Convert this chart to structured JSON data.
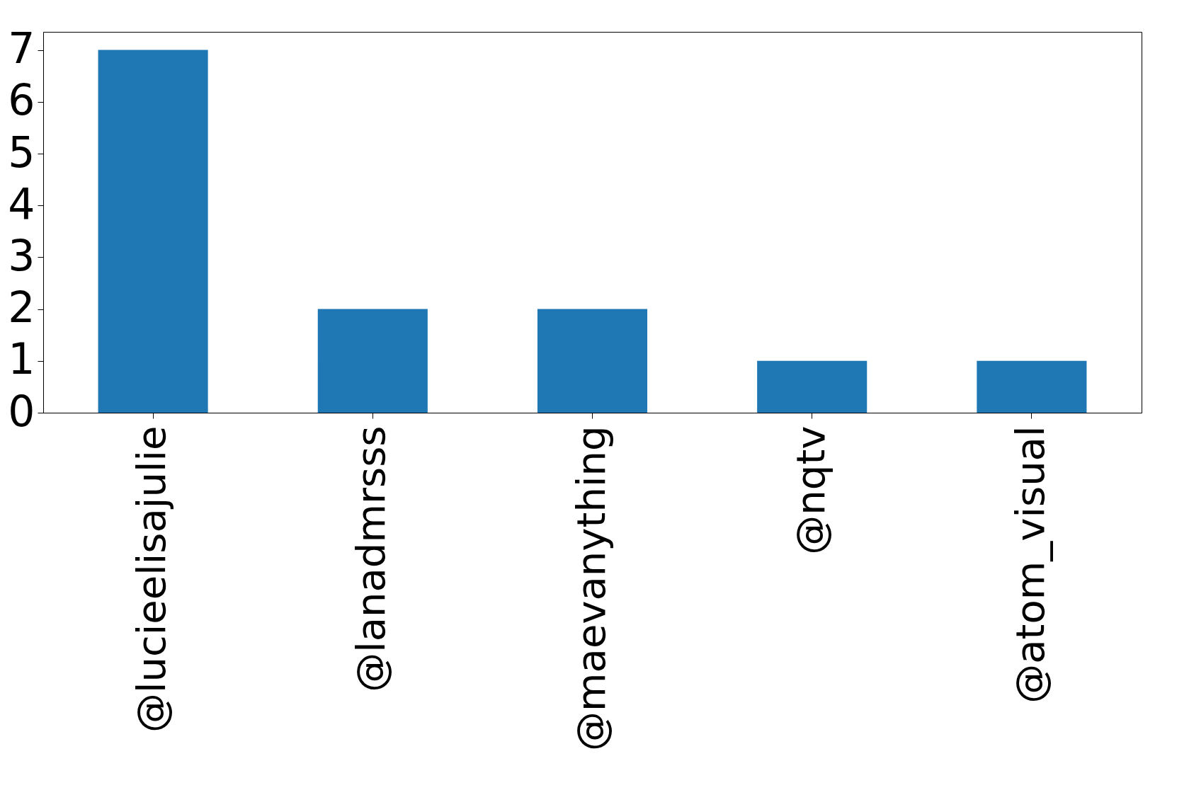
{
  "chart_data": {
    "type": "bar",
    "categories": [
      "@lucieelisajulie",
      "@lanadmrsss",
      "@maevanything",
      "@nqtv",
      "@atom_visual"
    ],
    "values": [
      7,
      2,
      2,
      1,
      1
    ],
    "color": "#1f77b4",
    "ylim": [
      0,
      7.35
    ],
    "yticks": [
      0,
      1,
      2,
      3,
      4,
      5,
      6,
      7
    ],
    "grid": false
  }
}
